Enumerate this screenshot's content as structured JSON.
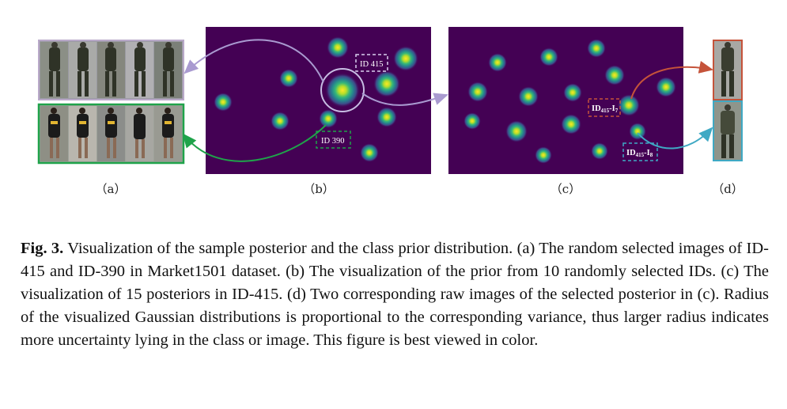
{
  "figure": {
    "subfig_labels": [
      "（a）",
      "（b）",
      "（c）",
      "（d）"
    ],
    "panel_b": {
      "box_top": "ID 415",
      "box_bottom": "ID 390"
    },
    "panel_c": {
      "box_red_main": "ID",
      "box_red_sub": "415",
      "box_red_tail": "-I",
      "box_red_tail_sub": "7",
      "box_blue_main": "ID",
      "box_blue_sub": "415",
      "box_blue_tail": "-I",
      "box_blue_tail_sub": "8"
    },
    "colors": {
      "plot_bg": "#440154",
      "purple_arrow": "#a99ad0",
      "green": "#1fa34a",
      "red": "#c5533a",
      "blue": "#3fa9c4",
      "gray_frame": "#b9a9c9"
    }
  },
  "caption": {
    "fig_label": "Fig. 3.",
    "text": "Visualization of the sample posterior and the class prior distribution. (a) The random selected images of ID-415 and ID-390 in Market1501 dataset. (b) The visualization of the prior from 10 randomly selected IDs. (c) The visualization of 15 posteriors in ID-415. (d) Two corresponding raw images of the selected posterior in (c). Radius of the visualized Gaussian distributions is proportional to the corresponding variance, thus larger radius indicates more uncertainty lying in the class or image. This figure is best viewed in color."
  }
}
